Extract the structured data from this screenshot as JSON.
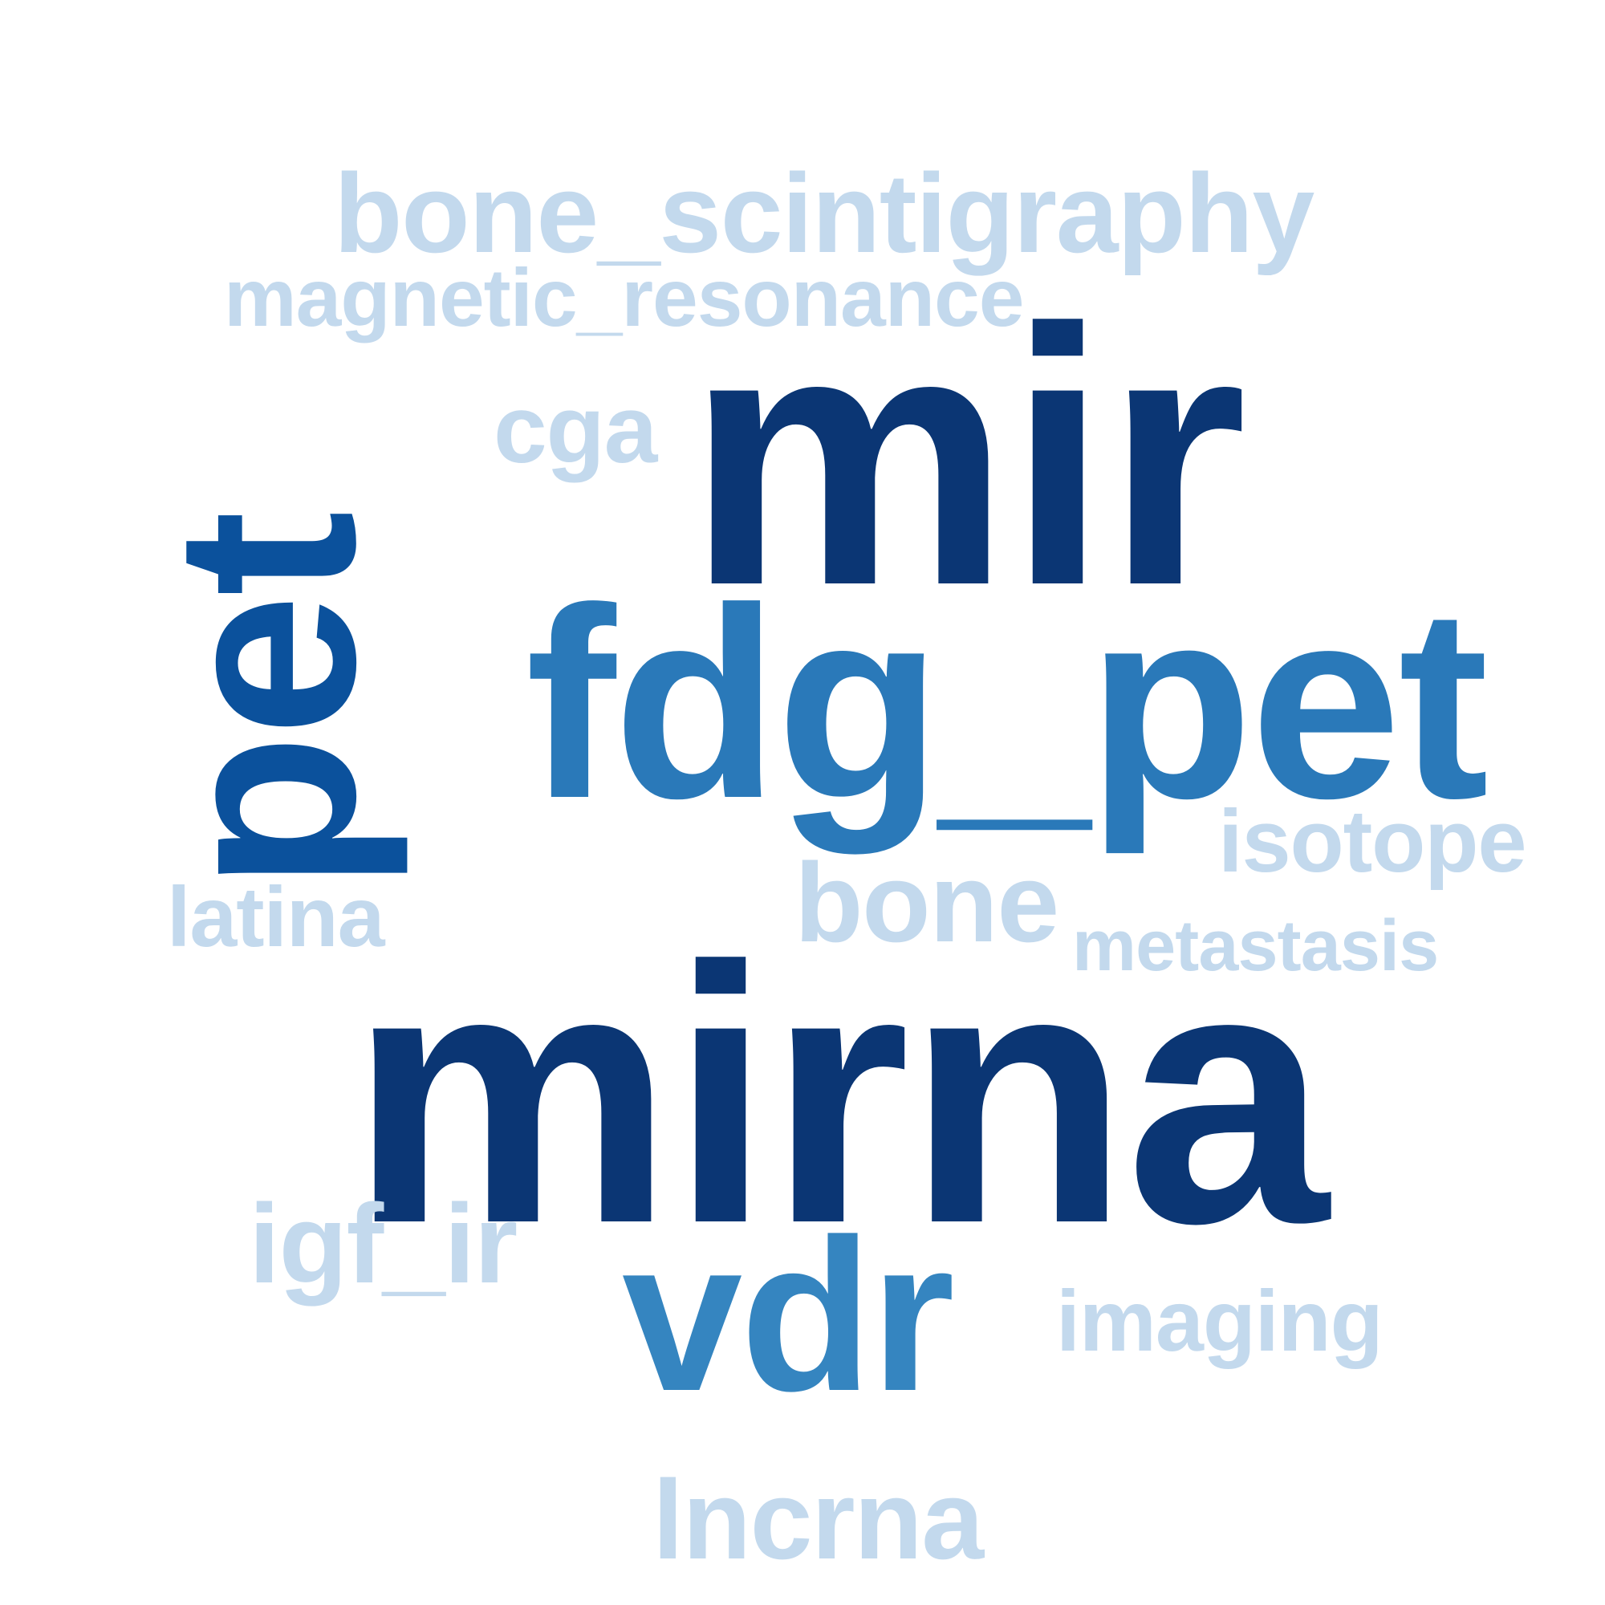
{
  "words": {
    "mirna": "mirna",
    "mir": "mir",
    "fdg_pet": "fdg_pet",
    "pet": "pet",
    "vdr": "vdr",
    "lncrna": "lncrna",
    "igf_ir": "igf_ir",
    "imaging": "imaging",
    "bone": "bone",
    "metastasis": "metastasis",
    "isotope": "isotope",
    "latina": "latina",
    "cga": "cga",
    "bone_scintigraphy": "bone_scintigraphy",
    "magnetic_resonance": "magnetic_resonance"
  },
  "colors": {
    "dark": "#0b3674",
    "dark_mid": "#0b519c",
    "mid": "#2a79b9",
    "mid2": "#3585c0",
    "light": "#c3d9ed",
    "background": "#ffffff"
  }
}
